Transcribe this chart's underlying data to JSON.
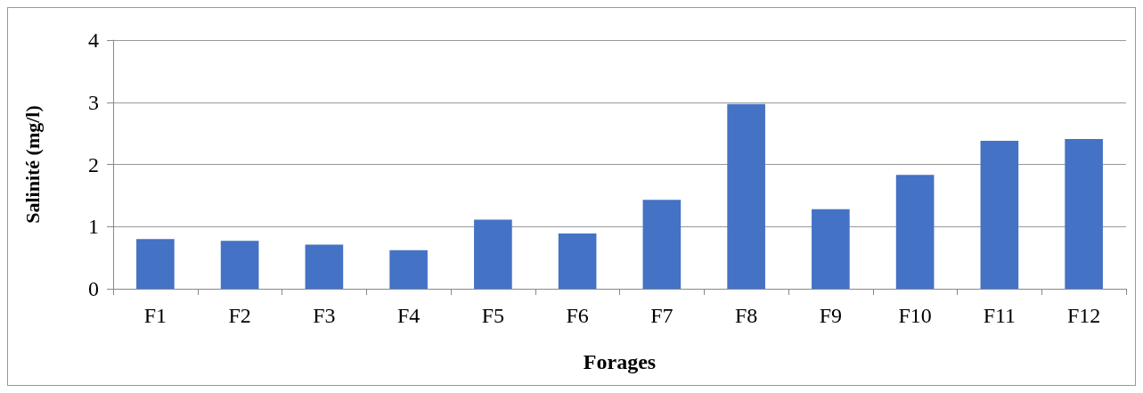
{
  "chart_data": {
    "type": "bar",
    "xlabel": "Forages",
    "ylabel": "Salinité (mg/l)",
    "categories": [
      "F1",
      "F2",
      "F3",
      "F4",
      "F5",
      "F6",
      "F7",
      "F8",
      "F9",
      "F10",
      "F11",
      "F12"
    ],
    "values": [
      0.8,
      0.77,
      0.71,
      0.62,
      1.11,
      0.89,
      1.43,
      2.97,
      1.28,
      1.83,
      2.38,
      2.41
    ],
    "color": "#4472c4",
    "ylim": [
      0,
      4
    ],
    "yticks": [
      0,
      1,
      2,
      3,
      4
    ],
    "grid": "y"
  }
}
